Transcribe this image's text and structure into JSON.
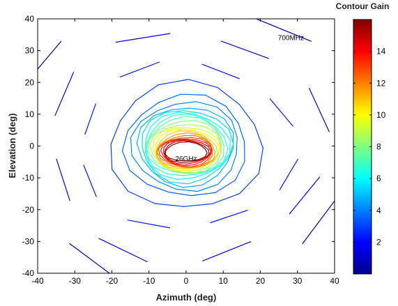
{
  "chart_data": {
    "type": "contour",
    "xlabel": "Azimuth (deg)",
    "ylabel": "Elevation (deg)",
    "xlim": [
      -40,
      40
    ],
    "ylim": [
      -40,
      40
    ],
    "xticks": [
      -40,
      -30,
      -20,
      -10,
      0,
      10,
      20,
      30,
      40
    ],
    "yticks": [
      -40,
      -30,
      -20,
      -10,
      0,
      10,
      20,
      30,
      40
    ],
    "colorbar": {
      "title": "Contour Gain",
      "range": [
        0,
        16
      ],
      "ticks": [
        2,
        4,
        6,
        8,
        10,
        12,
        14
      ],
      "colormap": "jet"
    },
    "annotations": [
      {
        "text": "700MHz",
        "x": 27,
        "y": 34
      },
      {
        "text": "26GHz",
        "x": 0,
        "y": -4
      }
    ],
    "grid": false,
    "contours": [
      {
        "level": 0.8,
        "rx": 46,
        "ry": 45,
        "cx": 0,
        "cy": 0
      },
      {
        "level": 1.5,
        "rx": 37,
        "ry": 36,
        "cx": 0,
        "cy": 0
      },
      {
        "level": 2.3,
        "rx": 29,
        "ry": 26,
        "cx": 0,
        "cy": 0
      },
      {
        "level": 3.0,
        "rx": 20.5,
        "ry": 20,
        "cx": 0,
        "cy": 0
      },
      {
        "level": 3.6,
        "rx": 16.5,
        "ry": 16,
        "cx": 0,
        "cy": 0
      },
      {
        "level": 4.2,
        "rx": 14.5,
        "ry": 14,
        "cx": 0,
        "cy": 0
      },
      {
        "level": 4.8,
        "rx": 13,
        "ry": 12.5,
        "cx": 0,
        "cy": 0
      },
      {
        "level": 5.4,
        "rx": 12.3,
        "ry": 11.5,
        "cx": 0,
        "cy": 0
      },
      {
        "level": 6.0,
        "rx": 11.6,
        "ry": 10.5,
        "cx": 0,
        "cy": 0
      },
      {
        "level": 6.6,
        "rx": 11,
        "ry": 9.7,
        "cx": 0,
        "cy": 0
      },
      {
        "level": 7.3,
        "rx": 10.5,
        "ry": 9,
        "cx": 0,
        "cy": 0
      },
      {
        "level": 8.0,
        "rx": 10,
        "ry": 8.3,
        "cx": 0,
        "cy": -0.3
      },
      {
        "level": 8.7,
        "rx": 9.5,
        "ry": 7.6,
        "cx": 0,
        "cy": -0.6
      },
      {
        "level": 9.4,
        "rx": 9.1,
        "ry": 7,
        "cx": 0,
        "cy": -0.9
      },
      {
        "level": 10.1,
        "rx": 8.7,
        "ry": 6.5,
        "cx": 0,
        "cy": -1.2
      },
      {
        "level": 10.8,
        "rx": 8.3,
        "ry": 6,
        "cx": 0,
        "cy": -1.4
      },
      {
        "level": 11.5,
        "rx": 7.9,
        "ry": 5.5,
        "cx": 0,
        "cy": -1.6
      },
      {
        "level": 12.2,
        "rx": 7.5,
        "ry": 5,
        "cx": 0,
        "cy": -1.7
      },
      {
        "level": 12.9,
        "rx": 7.2,
        "ry": 4.6,
        "cx": 0,
        "cy": -1.8
      },
      {
        "level": 13.6,
        "rx": 6.8,
        "ry": 4.2,
        "cx": 0,
        "cy": -1.8
      },
      {
        "level": 14.3,
        "rx": 6.4,
        "ry": 3.8,
        "cx": 0,
        "cy": -1.8
      },
      {
        "level": 15.0,
        "rx": 6,
        "ry": 3.4,
        "cx": 0,
        "cy": -1.8
      },
      {
        "level": 15.6,
        "rx": 5.6,
        "ry": 3,
        "cx": 0,
        "cy": -1.8
      }
    ]
  }
}
